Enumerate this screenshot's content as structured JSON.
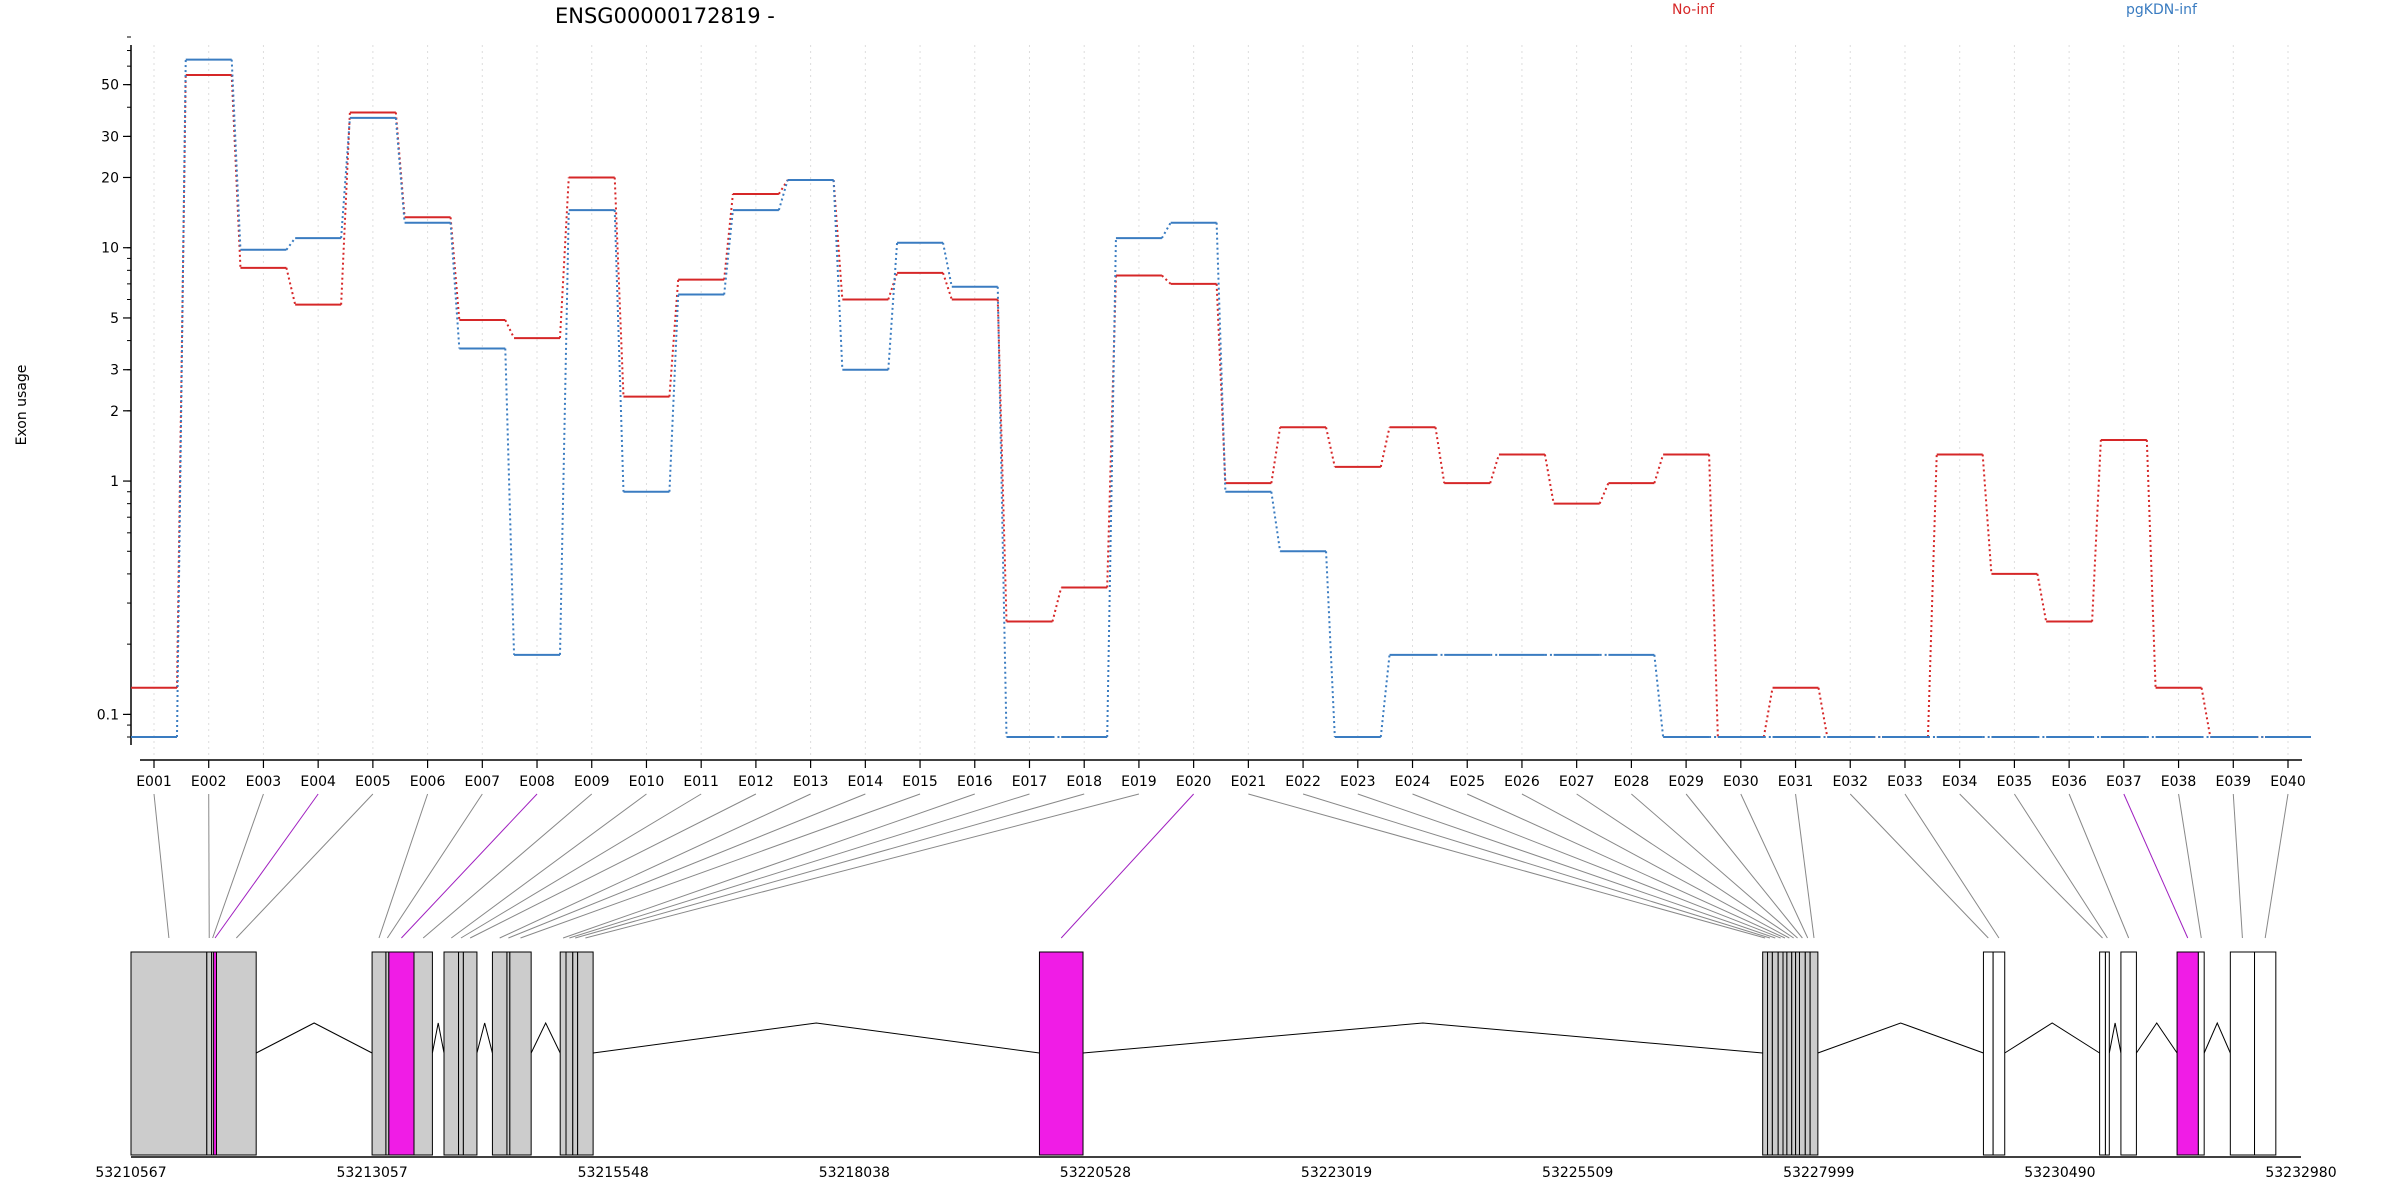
{
  "chart_data": {
    "type": "line",
    "title": "ENSG00000172819 -",
    "ylabel": "Exon usage",
    "y_scale": "log",
    "ylim": [
      0.08,
      80
    ],
    "y_ticks": [
      0.1,
      1,
      2,
      3,
      5,
      10,
      20,
      30,
      50
    ],
    "grid": "vertical dotted lines at each exon",
    "legend": "top-right",
    "categories": [
      "E001",
      "E002",
      "E003",
      "E004",
      "E005",
      "E006",
      "E007",
      "E008",
      "E009",
      "E010",
      "E011",
      "E012",
      "E013",
      "E014",
      "E015",
      "E016",
      "E017",
      "E018",
      "E019",
      "E020",
      "E021",
      "E022",
      "E023",
      "E024",
      "E025",
      "E026",
      "E027",
      "E028",
      "E029",
      "E030",
      "E031",
      "E032",
      "E033",
      "E034",
      "E035",
      "E036",
      "E037",
      "E038",
      "E039",
      "E040"
    ],
    "series": [
      {
        "name": "No-inf",
        "color": "#d62728",
        "values": [
          0.13,
          55,
          8.2,
          5.7,
          38,
          13.5,
          4.9,
          4.1,
          20,
          2.3,
          7.3,
          17,
          19.5,
          6.0,
          7.8,
          6.0,
          0.25,
          0.35,
          7.6,
          7.0,
          0.98,
          1.7,
          1.15,
          1.7,
          0.98,
          1.3,
          0.8,
          0.98,
          1.3,
          0.08,
          0.13,
          0.08,
          0.08,
          1.3,
          0.4,
          0.25,
          1.5,
          0.13,
          0.08,
          0.08
        ]
      },
      {
        "name": "pgKDN-inf",
        "color": "#3a7cc1",
        "values": [
          0.08,
          64,
          9.8,
          11,
          36,
          12.8,
          3.7,
          0.18,
          14.5,
          0.9,
          6.3,
          14.5,
          19.5,
          3.0,
          10.5,
          6.8,
          0.08,
          0.08,
          11,
          12.8,
          0.9,
          0.5,
          0.08,
          0.18,
          0.18,
          0.18,
          0.18,
          0.18,
          0.08,
          0.08,
          0.08,
          0.08,
          0.08,
          0.08,
          0.08,
          0.08,
          0.08,
          0.08,
          0.08,
          0.08
        ]
      }
    ],
    "highlighted_exons": [
      "E004",
      "E008",
      "E020",
      "E037"
    ],
    "gene_model": {
      "coordinate_labels": [
        "53210567",
        "53213057",
        "53215548",
        "53218038",
        "53220528",
        "53223019",
        "53225509",
        "53227999",
        "53230490",
        "53232980"
      ],
      "exons": [
        {
          "id": "E001",
          "start": 53210567,
          "end": 53211350
        },
        {
          "id": "E002",
          "start": 53211350,
          "end": 53211400
        },
        {
          "id": "E003",
          "start": 53211400,
          "end": 53211420
        },
        {
          "id": "E004",
          "start": 53211420,
          "end": 53211450
        },
        {
          "id": "E005",
          "start": 53211450,
          "end": 53211860
        },
        {
          "id": "E006",
          "start": 53213057,
          "end": 53213200
        },
        {
          "id": "E007",
          "start": 53213200,
          "end": 53213230
        },
        {
          "id": "E008",
          "start": 53213230,
          "end": 53213490
        },
        {
          "id": "E009",
          "start": 53213490,
          "end": 53213680
        },
        {
          "id": "E010",
          "start": 53213800,
          "end": 53213950
        },
        {
          "id": "E011",
          "start": 53213950,
          "end": 53214000
        },
        {
          "id": "E012",
          "start": 53214000,
          "end": 53214140
        },
        {
          "id": "E013",
          "start": 53214300,
          "end": 53214450
        },
        {
          "id": "E014",
          "start": 53214450,
          "end": 53214480
        },
        {
          "id": "E015",
          "start": 53214480,
          "end": 53214700
        },
        {
          "id": "E016",
          "start": 53215000,
          "end": 53215060
        },
        {
          "id": "E017",
          "start": 53215060,
          "end": 53215130
        },
        {
          "id": "E018",
          "start": 53215130,
          "end": 53215180
        },
        {
          "id": "E019",
          "start": 53215180,
          "end": 53215340
        },
        {
          "id": "E020",
          "start": 53219950,
          "end": 53220400
        },
        {
          "id": "E021",
          "start": 53227420,
          "end": 53227470
        },
        {
          "id": "E022",
          "start": 53227470,
          "end": 53227520
        },
        {
          "id": "E023",
          "start": 53227520,
          "end": 53227580
        },
        {
          "id": "E024",
          "start": 53227580,
          "end": 53227630
        },
        {
          "id": "E025",
          "start": 53227630,
          "end": 53227670
        },
        {
          "id": "E026",
          "start": 53227670,
          "end": 53227720
        },
        {
          "id": "E027",
          "start": 53227720,
          "end": 53227760
        },
        {
          "id": "E028",
          "start": 53227760,
          "end": 53227800
        },
        {
          "id": "E029",
          "start": 53227800,
          "end": 53227860
        },
        {
          "id": "E030",
          "start": 53227860,
          "end": 53227910
        },
        {
          "id": "E031",
          "start": 53227910,
          "end": 53227990
        },
        {
          "id": "E032",
          "start": 53229700,
          "end": 53229800
        },
        {
          "id": "E033",
          "start": 53229800,
          "end": 53229920
        },
        {
          "id": "E034",
          "start": 53230900,
          "end": 53230960
        },
        {
          "id": "E035",
          "start": 53230960,
          "end": 53231000
        },
        {
          "id": "E036",
          "start": 53231120,
          "end": 53231280
        },
        {
          "id": "E037",
          "start": 53231700,
          "end": 53231920
        },
        {
          "id": "E038",
          "start": 53231920,
          "end": 53231980
        },
        {
          "id": "E039",
          "start": 53232250,
          "end": 53232500
        },
        {
          "id": "E040",
          "start": 53232500,
          "end": 53232720
        }
      ],
      "gene_start": 53210567,
      "gene_end": 53232980
    },
    "colors": {
      "exon_fill": "#cccccc",
      "exon_open_fill": "#ffffff",
      "highlight_fill": "#f01ce6",
      "highlight_line": "#a020c0",
      "connector": "#888888",
      "intron": "#000000",
      "grid": "#dddddd"
    }
  }
}
